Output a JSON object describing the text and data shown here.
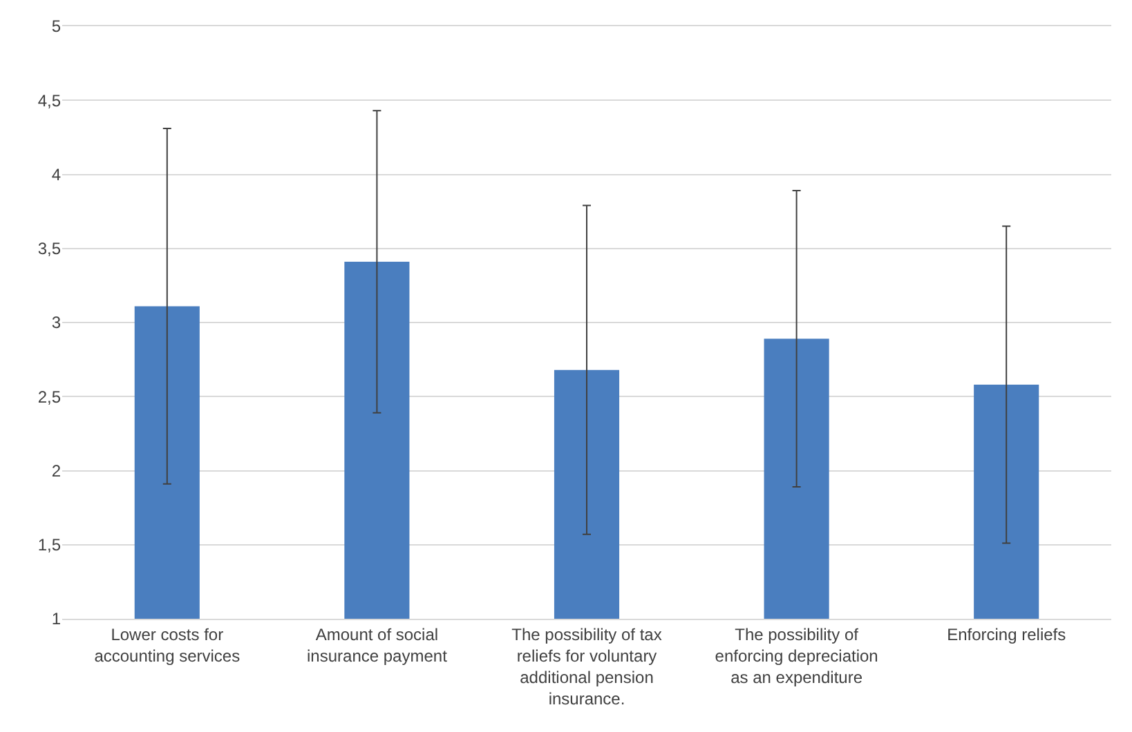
{
  "chart_data": {
    "type": "bar",
    "categories": [
      "Lower costs for accounting services",
      "Amount of social insurance payment",
      "The possibility of tax reliefs for voluntary additional pension insurance.",
      "The possibility of enforcing depreciation as an expenditure",
      "Enforcing reliefs"
    ],
    "values": [
      3.11,
      3.41,
      2.68,
      2.89,
      2.58
    ],
    "errors": [
      1.2,
      1.02,
      1.11,
      1.0,
      1.07
    ],
    "color": "#4a7ebf",
    "ylim": [
      1,
      5
    ],
    "yticks": [
      1,
      {
        "value": 1.5,
        "label": "1,5"
      },
      2,
      {
        "value": 2.5,
        "label": "2,5"
      },
      3,
      {
        "value": 3.5,
        "label": "3,5"
      },
      4,
      {
        "value": 4.5,
        "label": "4,5"
      },
      5
    ],
    "grid": "y"
  }
}
